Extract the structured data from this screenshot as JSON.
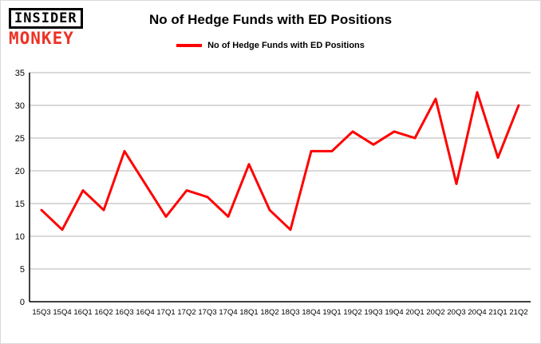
{
  "header": {
    "logo_line1": "INSIDER",
    "logo_line2": "MONKEY",
    "title": "No of Hedge Funds with ED Positions"
  },
  "legend": {
    "label": "No of Hedge Funds with ED Positions"
  },
  "colors": {
    "line": "#fe0000",
    "logo_red": "#ee3124",
    "grid": "#b3b3b3",
    "axis": "#000000"
  },
  "chart_data": {
    "type": "line",
    "title": "No of Hedge Funds with ED Positions",
    "categories": [
      "15Q3",
      "15Q4",
      "16Q1",
      "16Q2",
      "16Q3",
      "16Q4",
      "17Q1",
      "17Q2",
      "17Q3",
      "17Q4",
      "18Q1",
      "18Q2",
      "18Q3",
      "18Q4",
      "19Q1",
      "19Q2",
      "19Q3",
      "19Q4",
      "20Q1",
      "20Q2",
      "20Q3",
      "20Q4",
      "21Q1",
      "21Q2"
    ],
    "values": [
      14,
      11,
      17,
      14,
      23,
      18,
      13,
      17,
      16,
      13,
      21,
      14,
      11,
      23,
      23,
      26,
      24,
      26,
      25,
      31,
      18,
      32,
      22,
      30
    ],
    "xlabel": "",
    "ylabel": "",
    "ylim": [
      0,
      35
    ],
    "yticks": [
      0,
      5,
      10,
      15,
      20,
      25,
      30,
      35
    ],
    "grid": true,
    "legend_position": "top",
    "line_color": "#fe0000"
  }
}
